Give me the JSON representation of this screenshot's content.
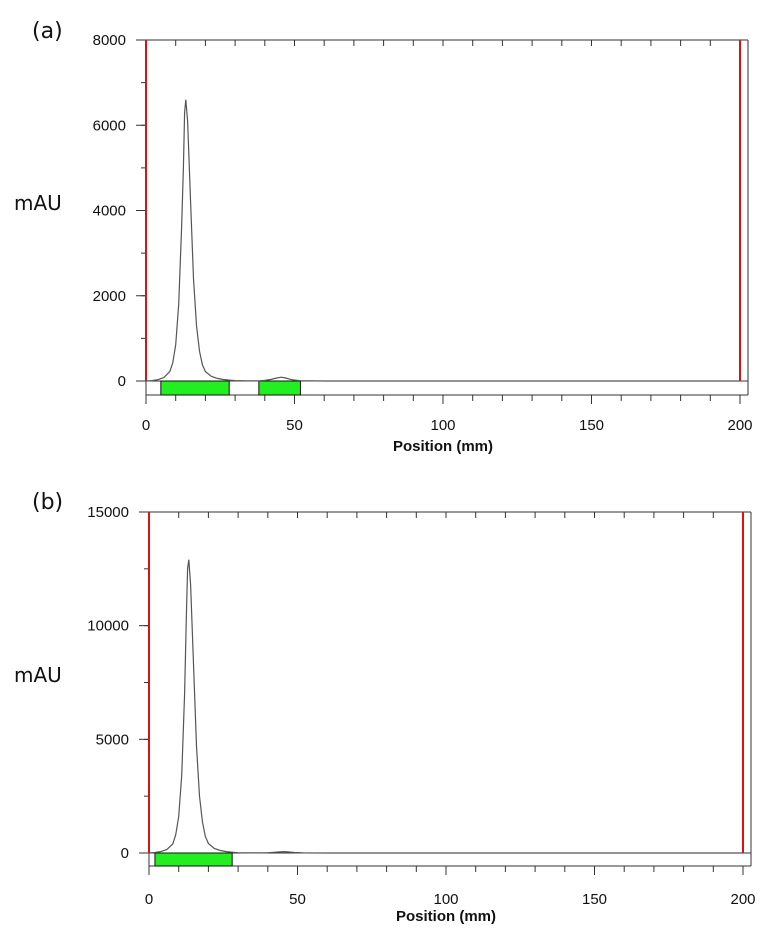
{
  "chart_data": [
    {
      "type": "line",
      "panel_label": "(a)",
      "xlabel": "Position (mm)",
      "ylabel": "mAU",
      "xlim": [
        0,
        200
      ],
      "ylim": [
        0,
        8000
      ],
      "x_ticks": [
        0,
        50,
        100,
        150,
        200
      ],
      "y_ticks": [
        0,
        2000,
        4000,
        6000,
        8000
      ],
      "grid": false,
      "series": [
        {
          "color": "#555555",
          "x": [
            0,
            2,
            4,
            6,
            8,
            9,
            10,
            11,
            12,
            12.6,
            13,
            13.4,
            14,
            15,
            16,
            17,
            18,
            19,
            20,
            22,
            24,
            26,
            28,
            30,
            34,
            38,
            40,
            42,
            44,
            45.5,
            47,
            49,
            52,
            60,
            80,
            100,
            150,
            200
          ],
          "y": [
            0,
            10,
            30,
            80,
            220,
            420,
            850,
            1800,
            3600,
            5000,
            6300,
            6600,
            6100,
            4200,
            2400,
            1300,
            700,
            380,
            220,
            110,
            60,
            35,
            20,
            10,
            5,
            5,
            15,
            35,
            70,
            90,
            70,
            30,
            8,
            0,
            0,
            0,
            0,
            0
          ]
        }
      ],
      "integration_bands": [
        [
          5,
          28
        ],
        [
          38,
          52
        ]
      ],
      "boundary_lines": [
        0,
        200
      ],
      "band_color": "#22ee22",
      "boundary_color": "#dd1111"
    },
    {
      "type": "line",
      "panel_label": "(b)",
      "xlabel": "Position (mm)",
      "ylabel": "mAU",
      "xlim": [
        0,
        200
      ],
      "ylim": [
        0,
        15000
      ],
      "x_ticks": [
        0,
        50,
        100,
        150,
        200
      ],
      "y_ticks": [
        0,
        5000,
        10000,
        15000
      ],
      "grid": false,
      "series": [
        {
          "color": "#555555",
          "x": [
            0,
            2,
            4,
            6,
            8,
            9,
            10,
            11,
            12,
            12.6,
            13,
            13.4,
            14,
            15,
            16,
            17,
            18,
            19,
            20,
            22,
            24,
            26,
            28,
            30,
            34,
            38,
            40,
            42,
            44,
            45.5,
            47,
            49,
            52,
            60,
            80,
            100,
            150,
            200
          ],
          "y": [
            0,
            20,
            60,
            150,
            400,
            800,
            1600,
            3400,
            7000,
            10500,
            12500,
            12900,
            11800,
            8200,
            4700,
            2500,
            1350,
            720,
            420,
            200,
            110,
            60,
            35,
            15,
            5,
            5,
            15,
            30,
            50,
            60,
            45,
            20,
            5,
            0,
            0,
            0,
            0,
            0
          ]
        }
      ],
      "integration_bands": [
        [
          2,
          28
        ]
      ],
      "boundary_lines": [
        0,
        200
      ],
      "band_color": "#22ee22",
      "boundary_color": "#dd1111"
    }
  ]
}
